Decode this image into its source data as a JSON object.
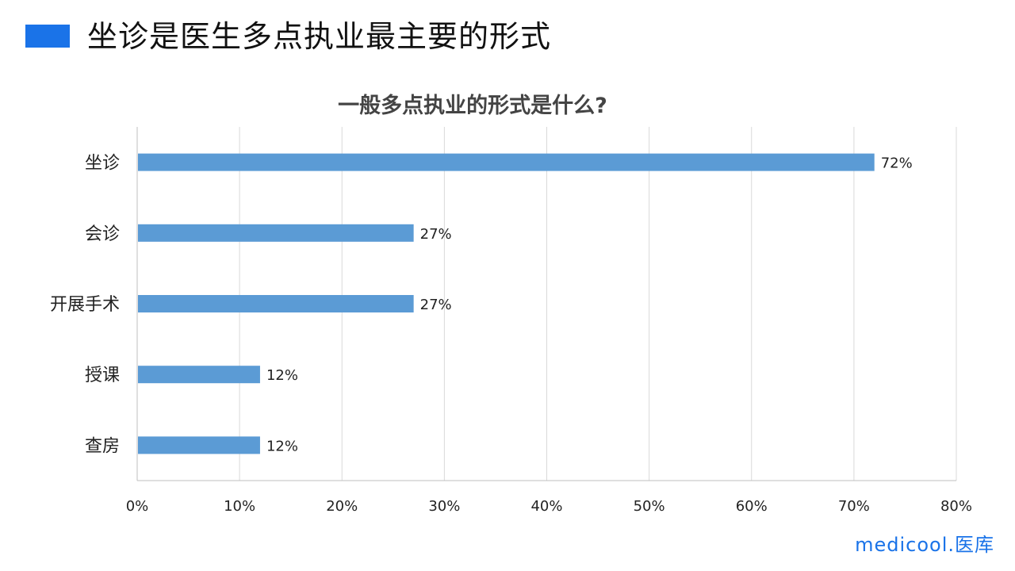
{
  "page": {
    "title": "坐诊是医生多点执业最主要的形式",
    "accent_color": "#1a73e8"
  },
  "logo": {
    "text": "medicool.医库"
  },
  "chart_data": {
    "type": "bar",
    "orientation": "horizontal",
    "title": "一般多点执业的形式是什么?",
    "categories": [
      "坐诊",
      "会诊",
      "开展手术",
      "授课",
      "查房"
    ],
    "values": [
      72,
      27,
      27,
      12,
      12
    ],
    "data_labels": [
      "72%",
      "27%",
      "27%",
      "12%",
      "12%"
    ],
    "xlim": [
      0,
      80
    ],
    "x_ticks": [
      0,
      10,
      20,
      30,
      40,
      50,
      60,
      70,
      80
    ],
    "x_tick_labels": [
      "0%",
      "10%",
      "20%",
      "30%",
      "40%",
      "50%",
      "60%",
      "70%",
      "80%"
    ],
    "bar_color": "#5b9bd5",
    "grid_color": "#d9d9d9",
    "grid": true,
    "legend": "none"
  }
}
